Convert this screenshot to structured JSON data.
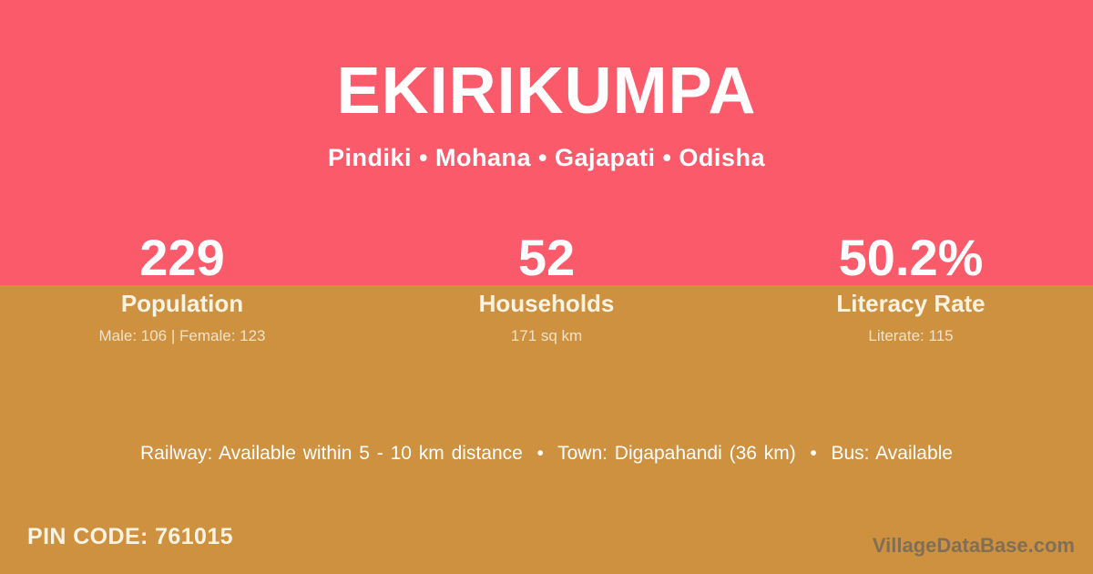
{
  "theme": {
    "pink": "#fb5a6b",
    "gold": "#cd9140",
    "text_white": "#ffffff",
    "text_cream": "#fbf3e2",
    "text_detail": "#f3e2c4",
    "watermark_gray": "rgba(84,88,95,0.62)"
  },
  "header": {
    "title": "EKIRIKUMPA",
    "subtitle": "Pindiki • Mohana • Gajapati • Odisha"
  },
  "stats": [
    {
      "value": "229",
      "label": "Population",
      "detail": "Male: 106 | Female: 123"
    },
    {
      "value": "52",
      "label": "Households",
      "detail": "171 sq km"
    },
    {
      "value": "50.2%",
      "label": "Literacy Rate",
      "detail": "Literate: 115"
    }
  ],
  "info_line": "Railway: Available within 5 - 10 km distance  •  Town: Digapahandi (36 km)  •  Bus: Available",
  "footer": {
    "pin": "PIN CODE: 761015",
    "watermark": "VillageDataBase.com"
  }
}
